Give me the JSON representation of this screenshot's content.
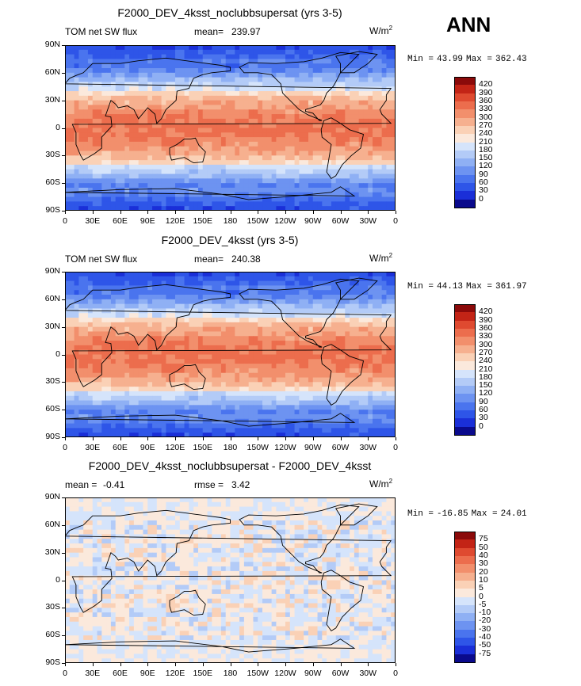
{
  "season_label": "ANN",
  "colors": {
    "abs_scale": [
      "#0a0a8c",
      "#1a2fd8",
      "#2e55e8",
      "#4a74ee",
      "#6d93f1",
      "#8fb0f4",
      "#b3cbf7",
      "#d5e4fb",
      "#fbe9dc",
      "#fad1b6",
      "#f6b08f",
      "#f28f6c",
      "#ec6d4d",
      "#df4a30",
      "#c32416",
      "#8b0a0a"
    ],
    "diff_scale": [
      "#0a0a8c",
      "#1a2fd8",
      "#2e55e8",
      "#4a74ee",
      "#6d93f1",
      "#8fb0f4",
      "#b3cbf7",
      "#d5e4fb",
      "#fbe9dc",
      "#fad1b6",
      "#f6b08f",
      "#f28f6c",
      "#ec6d4d",
      "#df4a30",
      "#c32416",
      "#8b0a0a"
    ],
    "coast": "#000000"
  },
  "chart_data": [
    {
      "type": "heatmap",
      "title": "F2000_DEV_4ksst_noclubbsupersat (yrs 3-5)",
      "left_label": "TOM net SW flux",
      "stat1_label": "mean=",
      "stat1_value": "239.97",
      "stat2_label": "",
      "stat2_value": "",
      "units": "W/m",
      "units_exp": "2",
      "min_label": "Min =",
      "min_value": "43.99",
      "max_label": "Max =",
      "max_value": "362.43",
      "field": "absolute",
      "x_ticks": [
        "0",
        "30E",
        "60E",
        "90E",
        "120E",
        "150E",
        "180",
        "150W",
        "120W",
        "90W",
        "60W",
        "30W",
        "0"
      ],
      "y_ticks": [
        "90N",
        "60N",
        "30N",
        "0",
        "30S",
        "60S",
        "90S"
      ],
      "colorbar_levels": [
        "420",
        "390",
        "360",
        "330",
        "300",
        "270",
        "240",
        "210",
        "180",
        "150",
        "120",
        "90",
        "60",
        "30",
        "0"
      ]
    },
    {
      "type": "heatmap",
      "title": "F2000_DEV_4ksst (yrs 3-5)",
      "left_label": "TOM net SW flux",
      "stat1_label": "mean=",
      "stat1_value": "240.38",
      "stat2_label": "",
      "stat2_value": "",
      "units": "W/m",
      "units_exp": "2",
      "min_label": "Min =",
      "min_value": "44.13",
      "max_label": "Max =",
      "max_value": "361.97",
      "field": "absolute",
      "x_ticks": [
        "0",
        "30E",
        "60E",
        "90E",
        "120E",
        "150E",
        "180",
        "150W",
        "120W",
        "90W",
        "60W",
        "30W",
        "0"
      ],
      "y_ticks": [
        "90N",
        "60N",
        "30N",
        "0",
        "30S",
        "60S",
        "90S"
      ],
      "colorbar_levels": [
        "420",
        "390",
        "360",
        "330",
        "300",
        "270",
        "240",
        "210",
        "180",
        "150",
        "120",
        "90",
        "60",
        "30",
        "0"
      ]
    },
    {
      "type": "heatmap",
      "title": "F2000_DEV_4ksst_noclubbsupersat - F2000_DEV_4ksst",
      "left_label": "mean =",
      "left_value": "-0.41",
      "stat1_label": "rmse =",
      "stat1_value": "3.42",
      "units": "W/m",
      "units_exp": "2",
      "min_label": "Min =",
      "min_value": "-16.85",
      "max_label": "Max =",
      "max_value": "24.01",
      "field": "difference",
      "x_ticks": [
        "0",
        "30E",
        "60E",
        "90E",
        "120E",
        "150E",
        "180",
        "150W",
        "120W",
        "90W",
        "60W",
        "30W",
        "0"
      ],
      "y_ticks": [
        "90N",
        "60N",
        "30N",
        "0",
        "30S",
        "60S",
        "90S"
      ],
      "colorbar_levels": [
        "75",
        "50",
        "40",
        "30",
        "20",
        "10",
        "5",
        "0",
        "-5",
        "-10",
        "-20",
        "-30",
        "-40",
        "-50",
        "-75"
      ]
    }
  ]
}
